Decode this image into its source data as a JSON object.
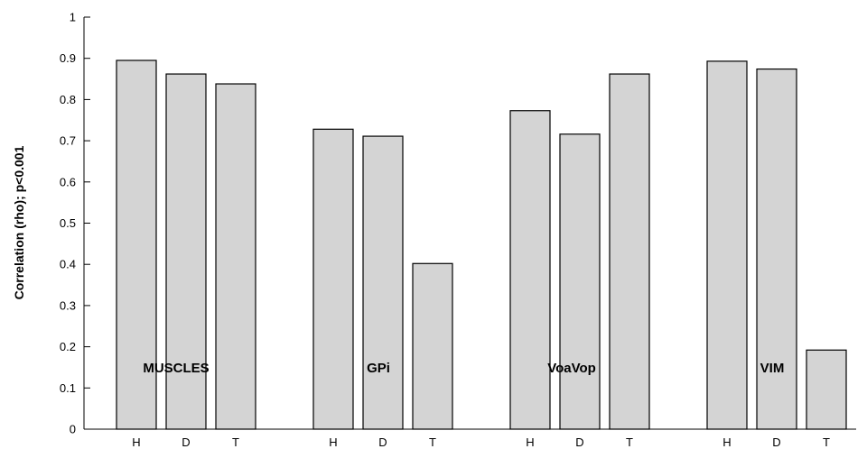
{
  "chart_data": {
    "type": "bar",
    "ylabel": "Correlation (rho); p<0.001",
    "xlabel": "",
    "ylim": [
      0,
      1
    ],
    "yticks": [
      "0",
      "0.1",
      "0.2",
      "0.3",
      "0.4",
      "0.5",
      "0.6",
      "0.7",
      "0.8",
      "0.9",
      "1"
    ],
    "grid": false,
    "groups": [
      {
        "name": "MUSCLES",
        "categories": [
          "H",
          "D",
          "T"
        ],
        "values": [
          0.895,
          0.862,
          0.838
        ]
      },
      {
        "name": "GPi",
        "categories": [
          "H",
          "D",
          "T"
        ],
        "values": [
          0.728,
          0.711,
          0.402
        ]
      },
      {
        "name": "VoaVop",
        "categories": [
          "H",
          "D",
          "T"
        ],
        "values": [
          0.773,
          0.716,
          0.862
        ]
      },
      {
        "name": "VIM",
        "categories": [
          "H",
          "D",
          "T"
        ],
        "values": [
          0.893,
          0.874,
          0.192
        ]
      }
    ],
    "bar_color": "#d4d4d4",
    "bar_edge_color": "#000000"
  }
}
